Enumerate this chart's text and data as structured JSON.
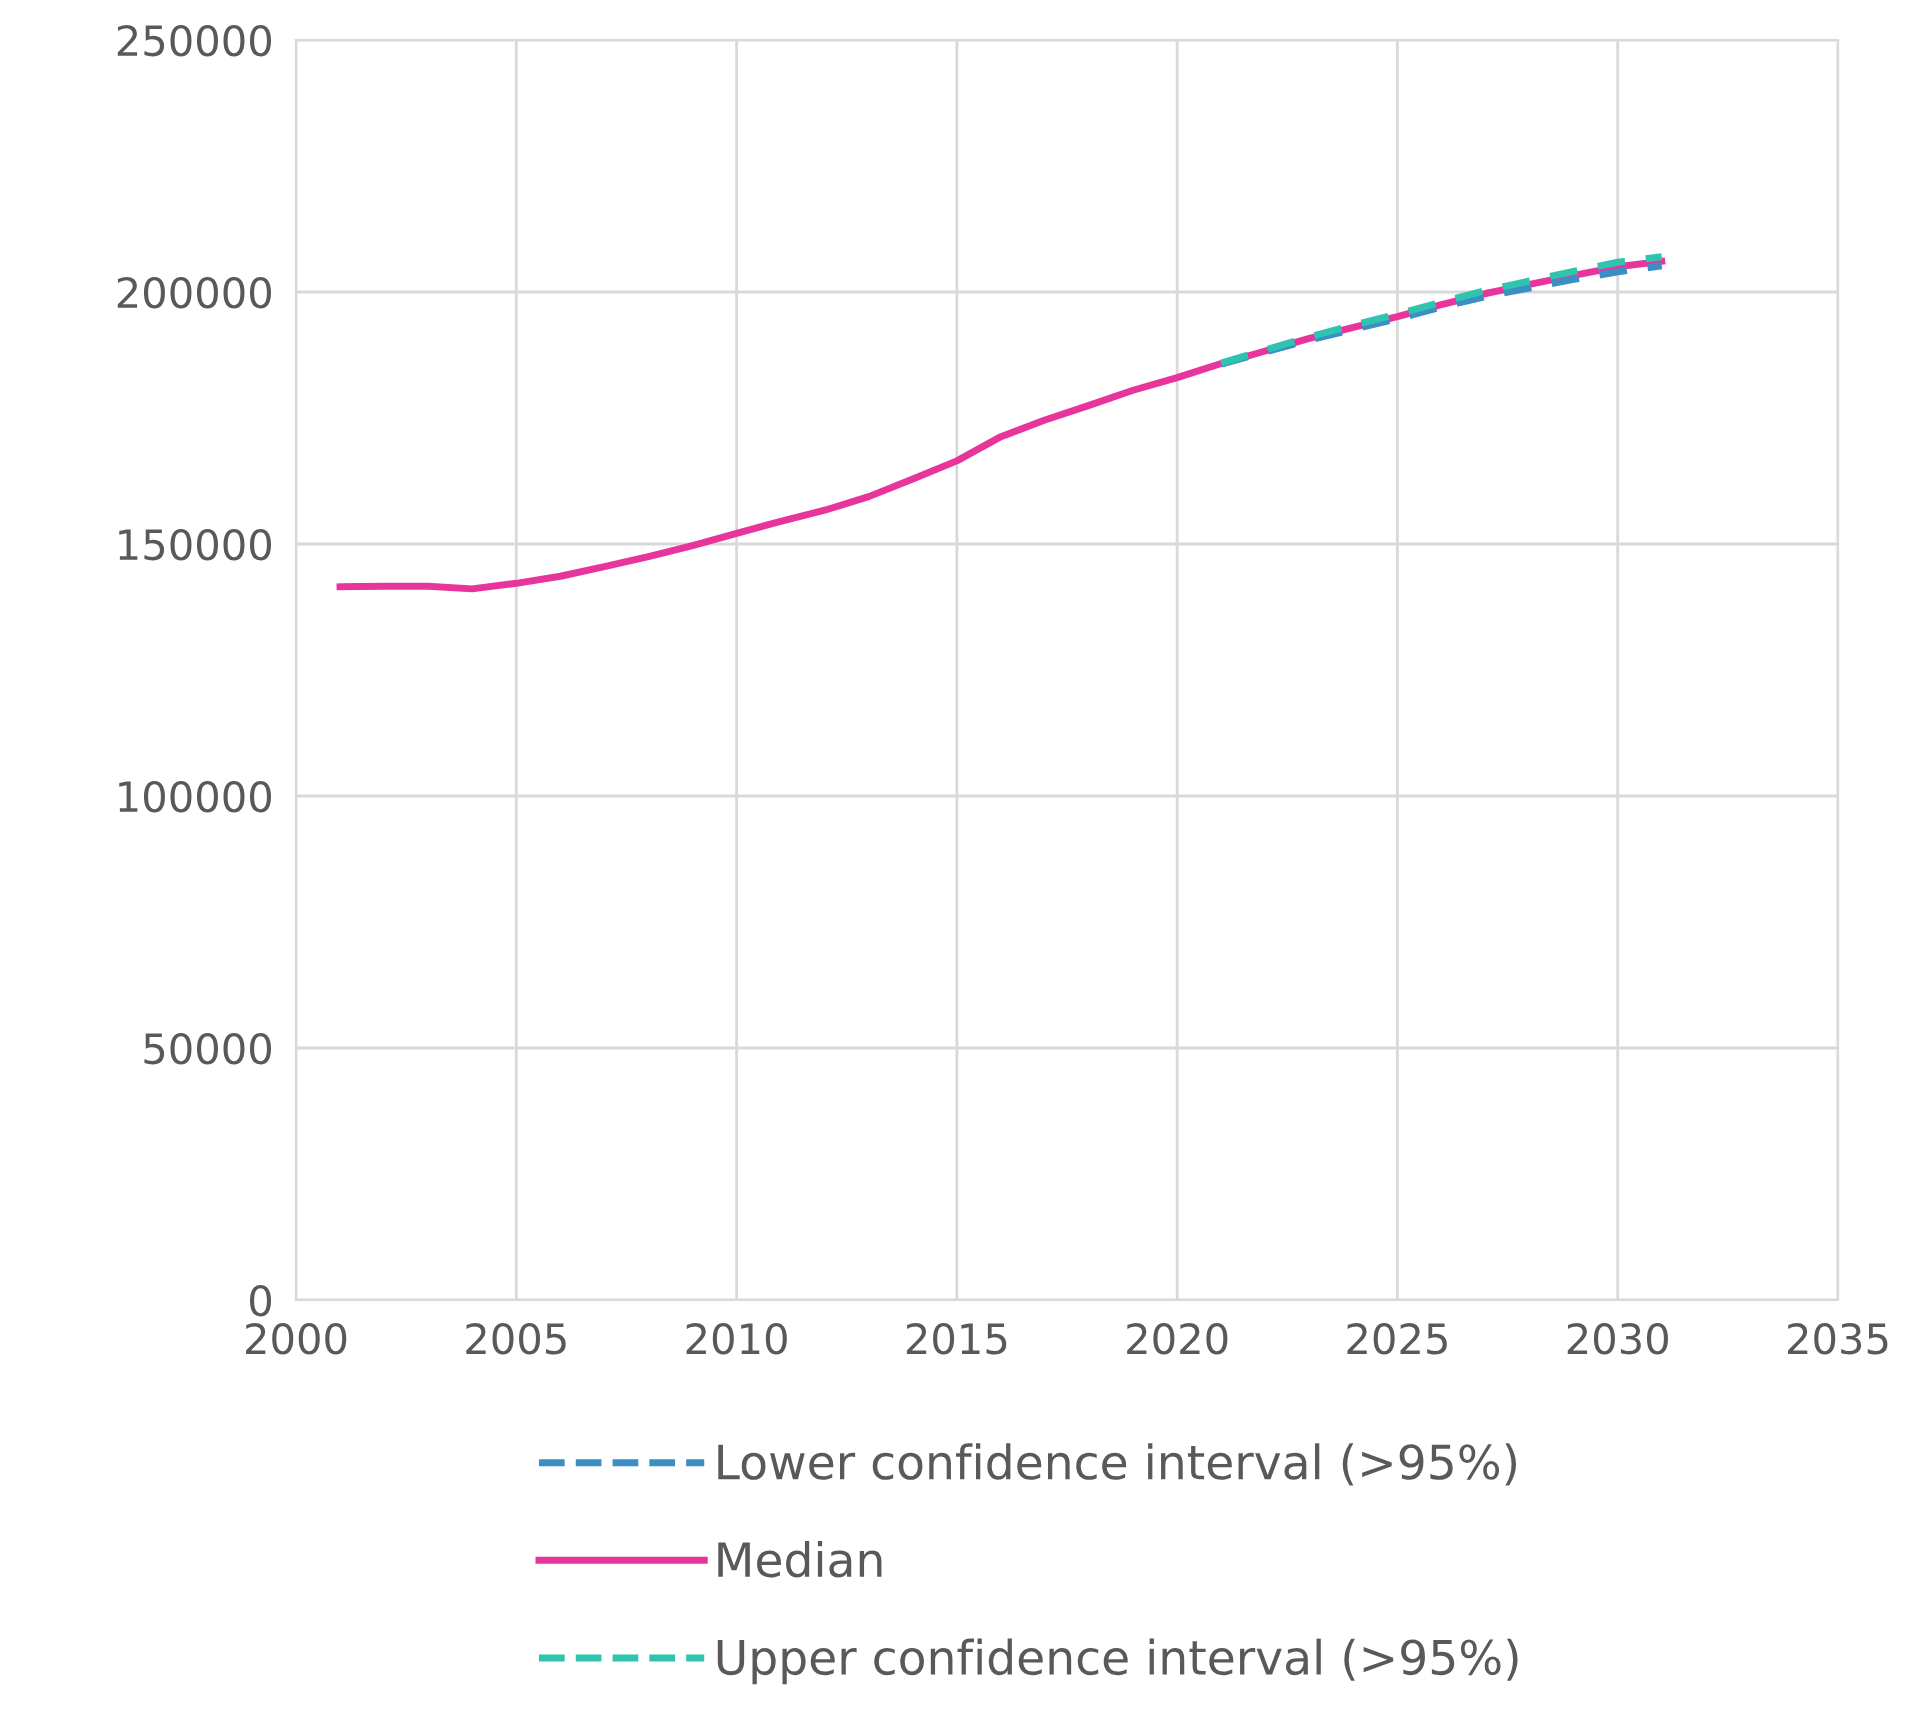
{
  "chart_data": {
    "type": "line",
    "xlim": [
      2000,
      2035
    ],
    "xticks": [
      2000,
      2005,
      2010,
      2015,
      2020,
      2025,
      2030,
      2035
    ],
    "ylim": [
      0,
      250000
    ],
    "yticks": [
      0,
      50000,
      100000,
      150000,
      200000,
      250000
    ],
    "grid": true,
    "legend": "bottom",
    "marker": "none",
    "series": [
      {
        "name": "Lower confidence interval (>95%)",
        "color": "#3b8fc4",
        "line_style": "dashed",
        "x": [
          2021,
          2022,
          2023,
          2024,
          2025,
          2026,
          2027,
          2028,
          2029,
          2030,
          2031
        ],
        "values": [
          185700,
          188100,
          190500,
          192600,
          194700,
          197000,
          199100,
          200800,
          202500,
          204000,
          205200
        ]
      },
      {
        "name": "Median",
        "color": "#e8359b",
        "line_style": "solid",
        "x": [
          2001,
          2002,
          2003,
          2004,
          2005,
          2006,
          2007,
          2008,
          2009,
          2010,
          2011,
          2012,
          2013,
          2014,
          2015,
          2016,
          2017,
          2018,
          2019,
          2020,
          2021,
          2022,
          2023,
          2024,
          2025,
          2026,
          2027,
          2028,
          2029,
          2030,
          2031
        ],
        "values": [
          141500,
          141600,
          141600,
          141100,
          142200,
          143600,
          145500,
          147500,
          149700,
          152100,
          154500,
          156700,
          159400,
          162900,
          166500,
          171300,
          174600,
          177500,
          180500,
          183000,
          185800,
          188300,
          190800,
          193000,
          195100,
          197500,
          199700,
          201500,
          203300,
          205000,
          206100
        ]
      },
      {
        "name": "Upper confidence interval (>95%)",
        "color": "#2ec4b0",
        "line_style": "dashed",
        "x": [
          2021,
          2022,
          2023,
          2024,
          2025,
          2026,
          2027,
          2028,
          2029,
          2030,
          2031
        ],
        "values": [
          185900,
          188500,
          191100,
          193400,
          195600,
          198000,
          200300,
          202200,
          204100,
          205900,
          207000
        ]
      }
    ]
  }
}
